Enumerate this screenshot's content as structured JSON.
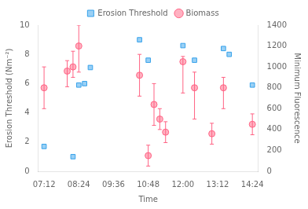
{
  "chart_data": {
    "type": "scatter",
    "xlabel": "Time",
    "ylabel": "Erosion Threshold (Nm⁻²)",
    "y2label": "Minimum Fluorescence",
    "xlim": [
      420,
      876
    ],
    "xticks": [
      {
        "value": 432,
        "label": "07:12"
      },
      {
        "value": 504,
        "label": "08:24"
      },
      {
        "value": 576,
        "label": "09:36"
      },
      {
        "value": 648,
        "label": "10:48"
      },
      {
        "value": 720,
        "label": "12:00"
      },
      {
        "value": 792,
        "label": "13:12"
      },
      {
        "value": 864,
        "label": "14:24"
      }
    ],
    "ylim": [
      0,
      10
    ],
    "yticks": [
      0,
      2,
      4,
      6,
      8,
      10
    ],
    "y2lim": [
      0,
      1400
    ],
    "y2ticks": [
      0,
      200,
      400,
      600,
      800,
      1000,
      1200,
      1400
    ],
    "grid": false,
    "legend": "top",
    "series": [
      {
        "name": "Erosion Threshold",
        "marker": "square",
        "x": [
          432,
          492,
          504,
          516,
          528,
          630,
          648,
          720,
          744,
          804,
          816,
          864
        ],
        "values": [
          1.7,
          1.0,
          5.9,
          6.0,
          7.1,
          9.0,
          7.6,
          8.6,
          7.6,
          8.4,
          8.0,
          5.9
        ]
      },
      {
        "name": "Biomass",
        "marker": "circle",
        "axis": "y2",
        "x": [
          432,
          480,
          492,
          504,
          630,
          648,
          660,
          672,
          684,
          720,
          744,
          780,
          804,
          864
        ],
        "values": [
          800,
          960,
          1000,
          1200,
          920,
          150,
          640,
          500,
          375,
          1050,
          800,
          360,
          800,
          450
        ],
        "error_low": [
          200,
          150,
          100,
          250,
          200,
          100,
          200,
          100,
          100,
          300,
          300,
          100,
          200,
          100
        ],
        "error_high": [
          200,
          100,
          150,
          200,
          200,
          100,
          200,
          100,
          100,
          50,
          150,
          100,
          100,
          100
        ]
      }
    ]
  }
}
